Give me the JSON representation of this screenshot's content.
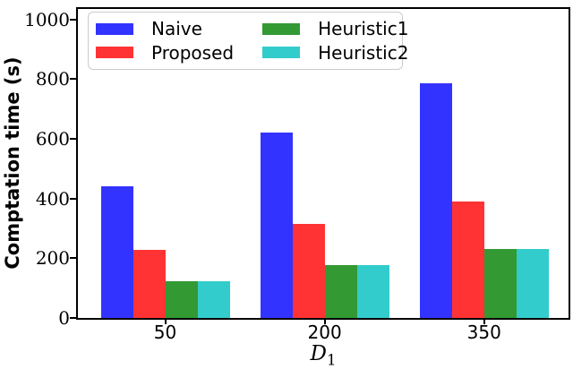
{
  "chart_data": {
    "type": "bar",
    "title": "",
    "ylabel": "Comptation time (s)",
    "xlabel_base": "D",
    "xlabel_sub": "1",
    "categories": [
      "50",
      "200",
      "350"
    ],
    "series": [
      {
        "name": "Naive",
        "color": "#3333ff",
        "values": [
          440,
          620,
          787
        ]
      },
      {
        "name": "Proposed",
        "color": "#ff3333",
        "values": [
          227,
          315,
          390
        ]
      },
      {
        "name": "Heuristic1",
        "color": "#339933",
        "values": [
          124,
          178,
          230
        ]
      },
      {
        "name": "Heuristic2",
        "color": "#33cccc",
        "values": [
          124,
          178,
          232
        ]
      }
    ],
    "yticks": [
      0,
      200,
      400,
      600,
      800,
      1000
    ],
    "ylim": [
      0,
      1035
    ],
    "legend_position": "upper left",
    "grid": false,
    "colors": {
      "axis": "#000000",
      "legend_border": "#cccccc",
      "background": "#ffffff"
    }
  }
}
